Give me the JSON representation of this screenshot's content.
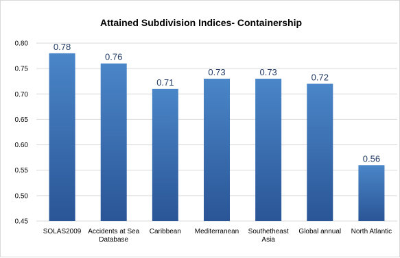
{
  "chart_data": {
    "type": "bar",
    "title": "Attained Subdivision Indices- Containership",
    "xlabel": "",
    "ylabel": "",
    "categories": [
      [
        "SOLAS2009"
      ],
      [
        "Accidents at Sea",
        "Database"
      ],
      [
        "Caribbean"
      ],
      [
        "Mediterranean"
      ],
      [
        "Southetheast",
        "Asia"
      ],
      [
        "Global annual"
      ],
      [
        "North Atlantic"
      ]
    ],
    "values": [
      0.78,
      0.76,
      0.71,
      0.73,
      0.73,
      0.72,
      0.56
    ],
    "data_labels": [
      "0.78",
      "0.76",
      "0.71",
      "0.73",
      "0.73",
      "0.72",
      "0.56"
    ],
    "ylim": [
      0.45,
      0.8
    ],
    "yticks": [
      "0.45",
      "0.50",
      "0.55",
      "0.60",
      "0.65",
      "0.70",
      "0.75",
      "0.80"
    ],
    "grid": "horizontal",
    "legend": "none",
    "colors": {
      "bar_top": "#4a86c8",
      "bar_bottom": "#2a5596",
      "grid": "#d9d9d9",
      "label": "#1f3864"
    }
  }
}
